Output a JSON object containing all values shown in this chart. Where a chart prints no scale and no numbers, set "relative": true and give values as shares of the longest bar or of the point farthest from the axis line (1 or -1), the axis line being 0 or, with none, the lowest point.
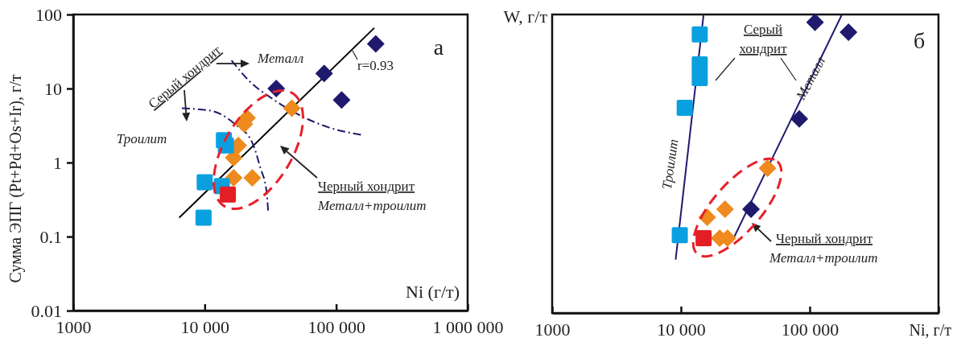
{
  "chart_data": [
    {
      "type": "scatter",
      "xlabel": "Ni (г/т)",
      "ylabel": "Сумма ЭПГ (Pt+Pd+Os+Ir), г/т",
      "log": "xy",
      "xlim": [
        1000,
        1000000
      ],
      "ylim": [
        0.01,
        100
      ],
      "xticks": [
        1000,
        {
          "value": 10000,
          "label": "10 000"
        },
        {
          "value": 100000,
          "label": "100 000"
        },
        {
          "value": 1000000,
          "label": "1 000 000"
        }
      ],
      "yticks": [
        0.01,
        0.1,
        1,
        10,
        100
      ],
      "grid": false,
      "series": [
        {
          "type": "line",
          "color": "#000000",
          "line_style": "solid",
          "marker": "none",
          "x": [
            6400,
            195000
          ],
          "values": [
            0.18,
            66
          ]
        },
        {
          "type": "line",
          "color": "#1f1a6e",
          "line_style": "dashed",
          "marker": "none",
          "x": [
            16000,
            21500,
            33000,
            51000,
            87000,
            160000
          ],
          "values": [
            24,
            13,
            7.2,
            4.5,
            3.0,
            2.35
          ]
        },
        {
          "type": "line",
          "color": "#1f1a6e",
          "line_style": "dashed",
          "marker": "none",
          "x": [
            6700,
            11200,
            17000,
            23000,
            26500,
            29500,
            30400
          ],
          "values": [
            5.4,
            5.0,
            3.3,
            1.86,
            0.85,
            0.41,
            0.22
          ]
        },
        {
          "color": "#1f1a6e",
          "marker": "diamond",
          "x": [
            200000,
            81000,
            110000,
            35000
          ],
          "values": [
            40,
            16,
            7,
            10
          ]
        },
        {
          "color": "#ee8a1e",
          "marker": "diamond",
          "x": [
            46000,
            21000,
            20000,
            18000,
            16600,
            23000,
            16600
          ],
          "values": [
            5.4,
            4,
            3.3,
            1.7,
            1.16,
            0.62,
            0.62
          ]
        },
        {
          "color": "#0aa0e0",
          "marker": "square",
          "x": [
            14000,
            14500,
            10000,
            13500,
            9800
          ],
          "values": [
            2.0,
            1.7,
            0.54,
            0.48,
            0.18
          ]
        },
        {
          "color": "#e31e24",
          "marker": "square",
          "x": [
            15000
          ],
          "values": [
            0.37
          ]
        }
      ],
      "annotations": [
        "а",
        "r=0.93",
        "Металл",
        "Серый хондрит",
        "Троилит",
        "Черный хондрит",
        "Металл+троилит"
      ]
    },
    {
      "type": "scatter",
      "xlabel": "Ni, г/т",
      "ylabel": "W, г/т",
      "log": "x",
      "relative": true,
      "xlim": [
        1000,
        1000000
      ],
      "xticks": [
        1000,
        {
          "value": 10000,
          "label": "10 000"
        },
        {
          "value": 100000,
          "label": "100 000"
        },
        {
          "value": 1000000,
          "label": null
        }
      ],
      "grid": false,
      "series": [
        {
          "type": "line",
          "color": "#1f1a6e",
          "line_style": "solid",
          "marker": "none",
          "x": [
            9100,
            15000
          ],
          "values": [
            0.179,
            1.0
          ]
        },
        {
          "type": "line",
          "color": "#1f1a6e",
          "line_style": "solid",
          "marker": "none",
          "x": [
            26000,
            178000
          ],
          "values": [
            0.256,
            1.0
          ]
        },
        {
          "color": "#0aa0e0",
          "marker": "square",
          "x": [
            14000,
            14000,
            14000,
            10700,
            9800
          ],
          "values": [
            0.933,
            0.833,
            0.787,
            0.687,
            0.261
          ]
        },
        {
          "color": "#1f1a6e",
          "marker": "diamond",
          "x": [
            110000,
            200000,
            83000,
            35000
          ],
          "values": [
            0.974,
            0.941,
            0.65,
            0.348
          ]
        },
        {
          "color": "#ee8a1e",
          "marker": "diamond",
          "x": [
            47000,
            16000,
            22000,
            20000,
            23000
          ],
          "values": [
            0.485,
            0.321,
            0.348,
            0.251,
            0.251
          ]
        },
        {
          "color": "#e31e24",
          "marker": "square",
          "x": [
            15000
          ],
          "values": [
            0.251
          ]
        }
      ],
      "annotations": [
        "б",
        "Серый хондрит",
        "Металл",
        "Троилит",
        "Черный хондрит",
        "Металл+троилит"
      ]
    }
  ]
}
